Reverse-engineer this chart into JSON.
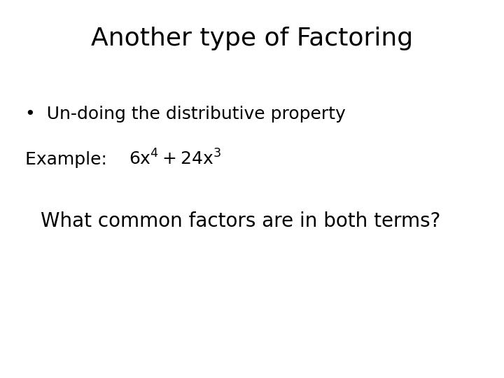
{
  "title": "Another type of Factoring",
  "title_fontsize": 26,
  "title_color": "#000000",
  "background_color": "#ffffff",
  "bullet_text": "Un-doing the distributive property",
  "bullet_fontsize": 18,
  "example_label": "Example:   ",
  "example_fontsize": 18,
  "question_text": "What common factors are in both terms?",
  "question_fontsize": 20,
  "text_color": "#000000",
  "font_family": "DejaVu Sans"
}
